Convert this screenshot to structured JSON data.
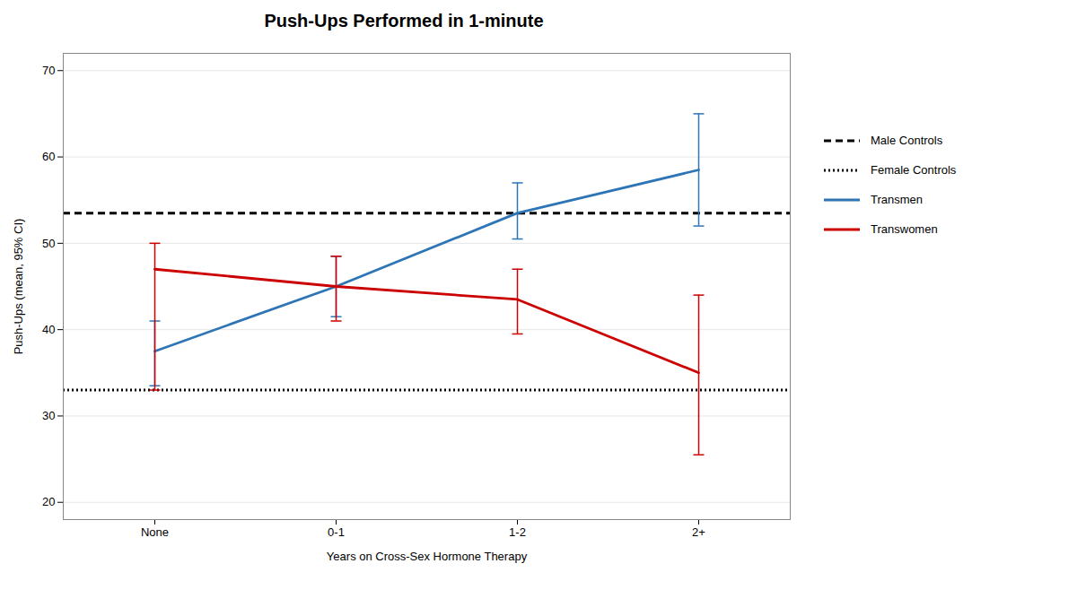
{
  "chart_data": {
    "type": "line",
    "title": "Push-Ups Performed in 1-minute",
    "xlabel": "Years on Cross-Sex Hormone Therapy",
    "ylabel": "Push-Ups (mean, 95% CI)",
    "categories": [
      "None",
      "0-1",
      "1-2",
      "2+"
    ],
    "ylim": [
      18,
      72
    ],
    "yticks": [
      20,
      30,
      40,
      50,
      60,
      70
    ],
    "grid": "y",
    "legend": "right",
    "series": [
      {
        "name": "Male Controls",
        "type": "hline",
        "value": 53.5,
        "color": "#000000",
        "line_style": "dashed"
      },
      {
        "name": "Female Controls",
        "type": "hline",
        "value": 33.0,
        "color": "#000000",
        "line_style": "dotted"
      },
      {
        "name": "Transmen",
        "type": "line",
        "color": "#2E75B6",
        "line_style": "solid",
        "values": [
          37.5,
          45.0,
          53.5,
          58.5
        ],
        "yerr_lower": [
          4.0,
          3.5,
          3.0,
          6.5
        ],
        "yerr_upper": [
          3.5,
          3.5,
          3.5,
          6.5
        ]
      },
      {
        "name": "Transwomen",
        "type": "line",
        "color": "#CC0000",
        "line_style": "solid",
        "values": [
          47.0,
          45.0,
          43.5,
          35.0
        ],
        "yerr_lower": [
          14.0,
          4.0,
          4.0,
          9.5
        ],
        "yerr_upper": [
          3.0,
          3.5,
          3.5,
          9.0
        ]
      }
    ]
  }
}
